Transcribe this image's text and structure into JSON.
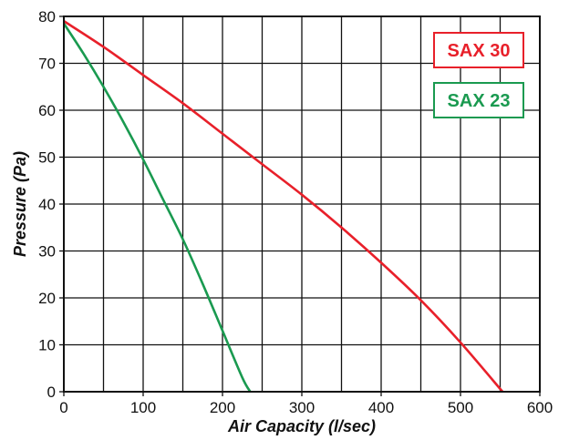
{
  "chart_data": {
    "type": "line",
    "xlabel": "Air Capacity (l/sec)",
    "ylabel": "Pressure (Pa)",
    "xlim": [
      0,
      600
    ],
    "ylim": [
      0,
      80
    ],
    "x_ticks": [
      0,
      100,
      200,
      300,
      400,
      500,
      600
    ],
    "y_ticks": [
      0,
      10,
      20,
      30,
      40,
      50,
      60,
      70,
      80
    ],
    "x_grid_step": 50,
    "grid": true,
    "legend_placement": "top-right",
    "series": [
      {
        "name": "SAX 30",
        "color": "#e8202a",
        "x": [
          0,
          50,
          100,
          150,
          200,
          250,
          300,
          350,
          400,
          450,
          500,
          553
        ],
        "y": [
          79,
          73.5,
          67.5,
          61.5,
          55,
          48.5,
          42,
          35,
          27.5,
          19.5,
          10.5,
          0
        ]
      },
      {
        "name": "SAX 23",
        "color": "#1a9a50",
        "x": [
          0,
          25,
          50,
          75,
          100,
          125,
          150,
          175,
          200,
          225,
          235
        ],
        "y": [
          78.5,
          72,
          65,
          57.5,
          49.5,
          41,
          32.5,
          23,
          13,
          3,
          0
        ]
      }
    ]
  }
}
